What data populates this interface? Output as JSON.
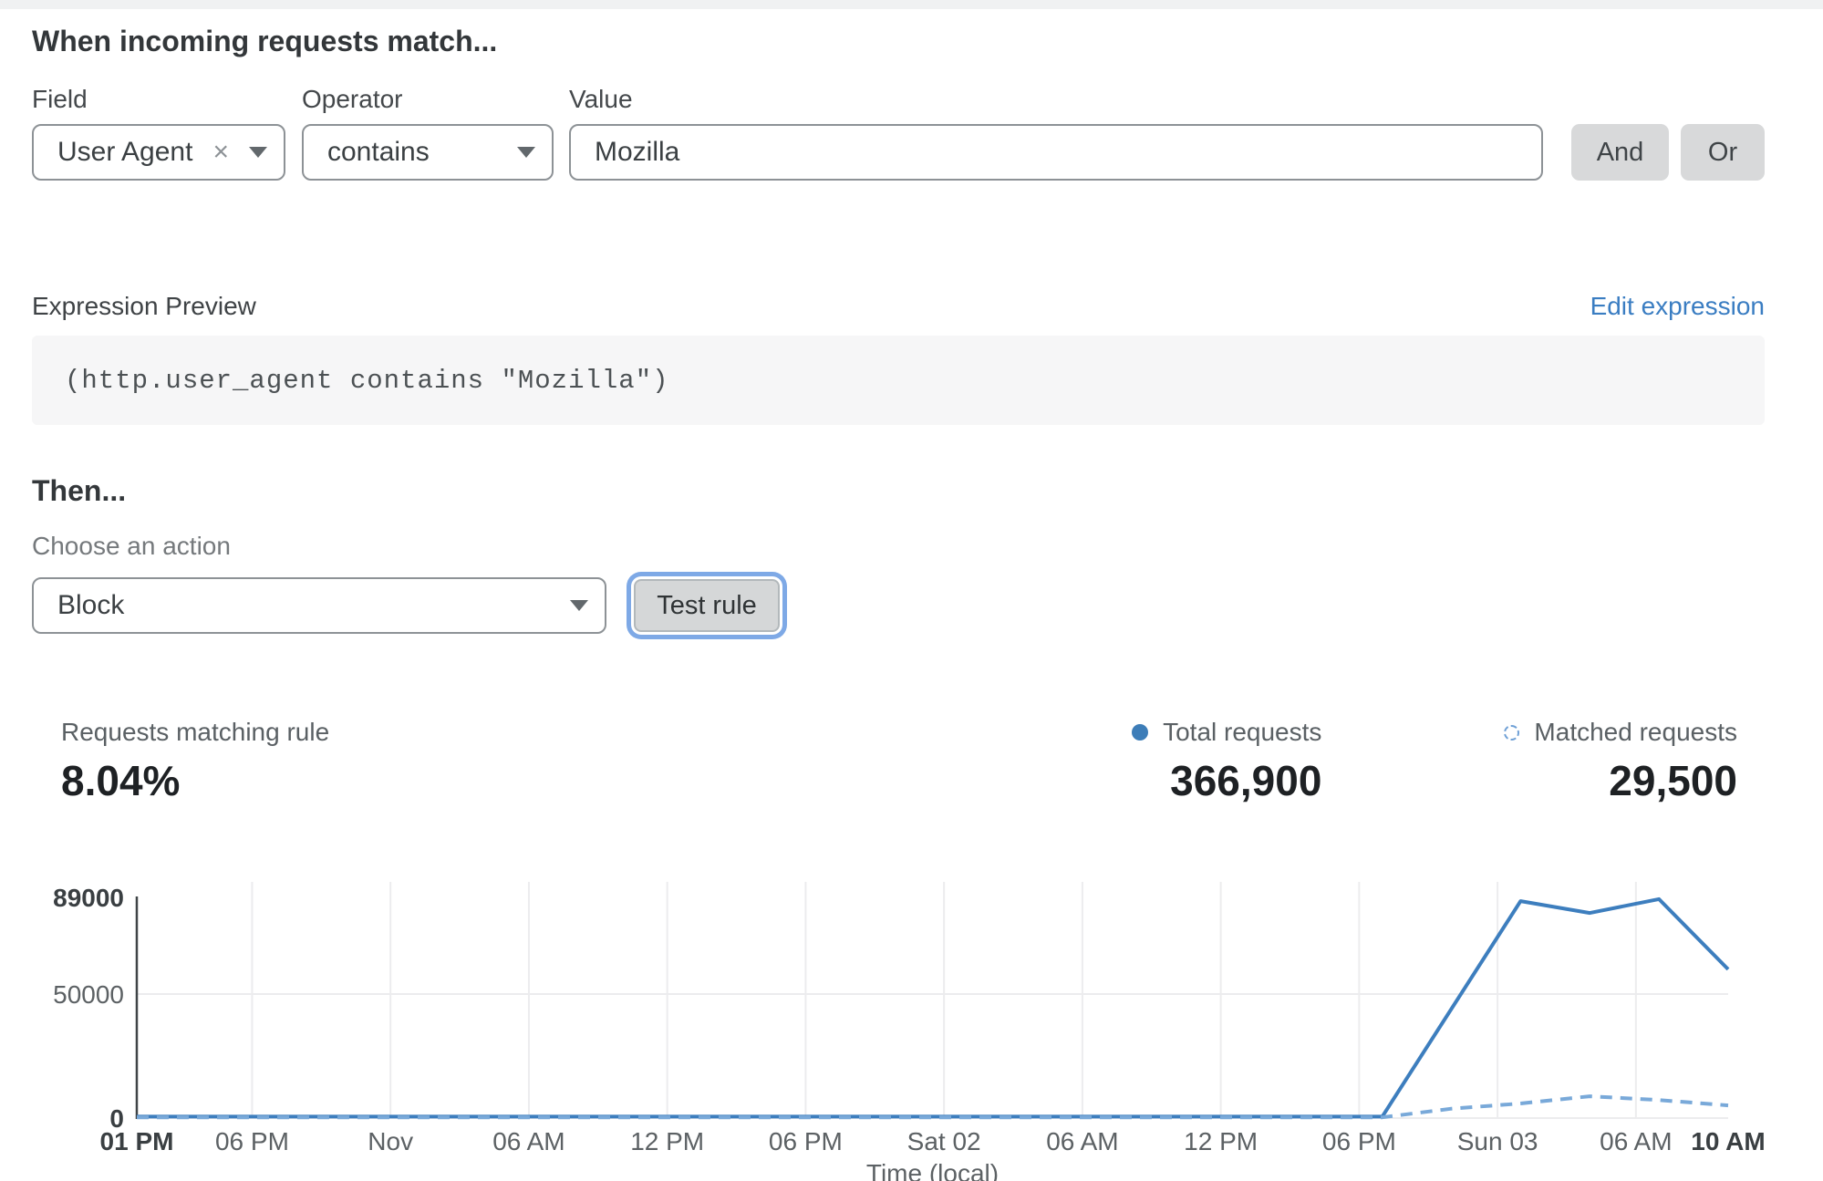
{
  "match_section": {
    "title": "When incoming requests match...",
    "field": {
      "label": "Field",
      "value": "User Agent"
    },
    "operator": {
      "label": "Operator",
      "value": "contains"
    },
    "value": {
      "label": "Value",
      "value": "Mozilla"
    },
    "and_label": "And",
    "or_label": "Or"
  },
  "expression": {
    "label": "Expression Preview",
    "edit_link": "Edit expression",
    "code": "(http.user_agent contains \"Mozilla\")"
  },
  "then_section": {
    "title": "Then...",
    "action_label": "Choose an action",
    "action_value": "Block",
    "test_button": "Test rule"
  },
  "stats": {
    "matching_label": "Requests matching rule",
    "matching_value": "8.04%",
    "total": {
      "label": "Total requests",
      "value": "366,900"
    },
    "matched": {
      "label": "Matched requests",
      "value": "29,500"
    }
  },
  "colors": {
    "accent_blue": "#3a7dc2",
    "line_solid": "#3d7ebe",
    "line_dashed": "#79a9d9",
    "axis": "#3f4447",
    "grid": "#ececee",
    "tick_gray": "#5c6164",
    "tick_bold": "#3a3f42"
  },
  "chart_data": {
    "type": "line",
    "title": "",
    "xlabel": "Time (local)",
    "ylabel": "",
    "ylim": [
      0,
      89000
    ],
    "x_total_hours": 69,
    "grid": true,
    "legend_position": "top-right",
    "y_ticks": [
      {
        "v": 0,
        "label": "0",
        "bold": true
      },
      {
        "v": 50000,
        "label": "50000",
        "bold": false
      },
      {
        "v": 89000,
        "label": "89000",
        "bold": true
      }
    ],
    "x_ticks": [
      {
        "t": 0,
        "label": "01 PM",
        "bold": true
      },
      {
        "t": 5,
        "label": "06 PM",
        "bold": false
      },
      {
        "t": 11,
        "label": "Nov",
        "bold": false
      },
      {
        "t": 17,
        "label": "06 AM",
        "bold": false
      },
      {
        "t": 23,
        "label": "12 PM",
        "bold": false
      },
      {
        "t": 29,
        "label": "06 PM",
        "bold": false
      },
      {
        "t": 35,
        "label": "Sat 02",
        "bold": false
      },
      {
        "t": 41,
        "label": "06 AM",
        "bold": false
      },
      {
        "t": 47,
        "label": "12 PM",
        "bold": false
      },
      {
        "t": 53,
        "label": "06 PM",
        "bold": false
      },
      {
        "t": 59,
        "label": "Sun 03",
        "bold": false
      },
      {
        "t": 65,
        "label": "06 AM",
        "bold": false
      },
      {
        "t": 69,
        "label": "10 AM",
        "bold": true
      }
    ],
    "series": [
      {
        "name": "Total requests",
        "style": "solid",
        "color": "#3d7ebe",
        "points": [
          [
            0,
            600
          ],
          [
            54,
            600
          ],
          [
            60,
            87500
          ],
          [
            63,
            82700
          ],
          [
            66,
            88300
          ],
          [
            69,
            60000
          ]
        ]
      },
      {
        "name": "Matched requests",
        "style": "dashed",
        "color": "#79a9d9",
        "points": [
          [
            0,
            300
          ],
          [
            54,
            300
          ],
          [
            57,
            3800
          ],
          [
            60,
            5900
          ],
          [
            63,
            8800
          ],
          [
            66,
            7300
          ],
          [
            69,
            5100
          ]
        ]
      }
    ]
  }
}
